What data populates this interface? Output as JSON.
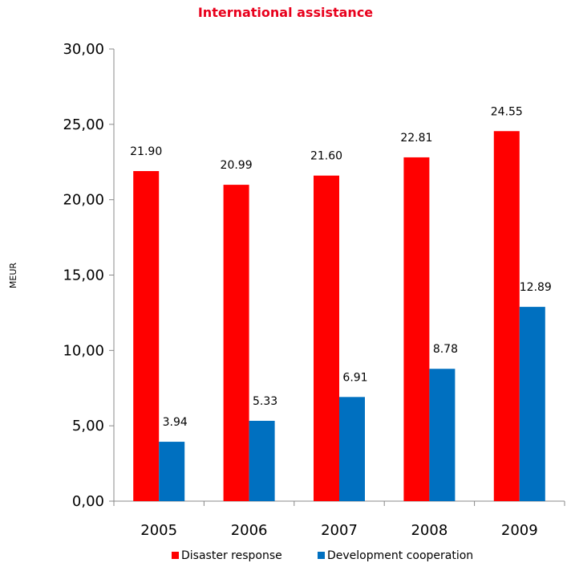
{
  "chart_data": {
    "type": "bar",
    "title": "International assistance",
    "ylabel": "MEUR",
    "xlabel": "",
    "categories": [
      "2005",
      "2006",
      "2007",
      "2008",
      "2009"
    ],
    "ylim": [
      0,
      30
    ],
    "yticks": [
      "0,00",
      "5,00",
      "10,00",
      "15,00",
      "20,00",
      "25,00",
      "30,00"
    ],
    "grid": false,
    "legend_position": "bottom",
    "series": [
      {
        "name": "Disaster response",
        "color": "#ff0000",
        "values": [
          21.9,
          20.99,
          21.6,
          22.81,
          24.55
        ],
        "labels": [
          "21.90",
          "20.99",
          "21.60",
          "22.81",
          "24.55"
        ]
      },
      {
        "name": "Development cooperation",
        "color": "#0070c0",
        "values": [
          3.94,
          5.33,
          6.91,
          8.78,
          12.89
        ],
        "labels": [
          "3.94",
          "5.33",
          "6.91",
          "8.78",
          "12.89"
        ]
      }
    ]
  }
}
